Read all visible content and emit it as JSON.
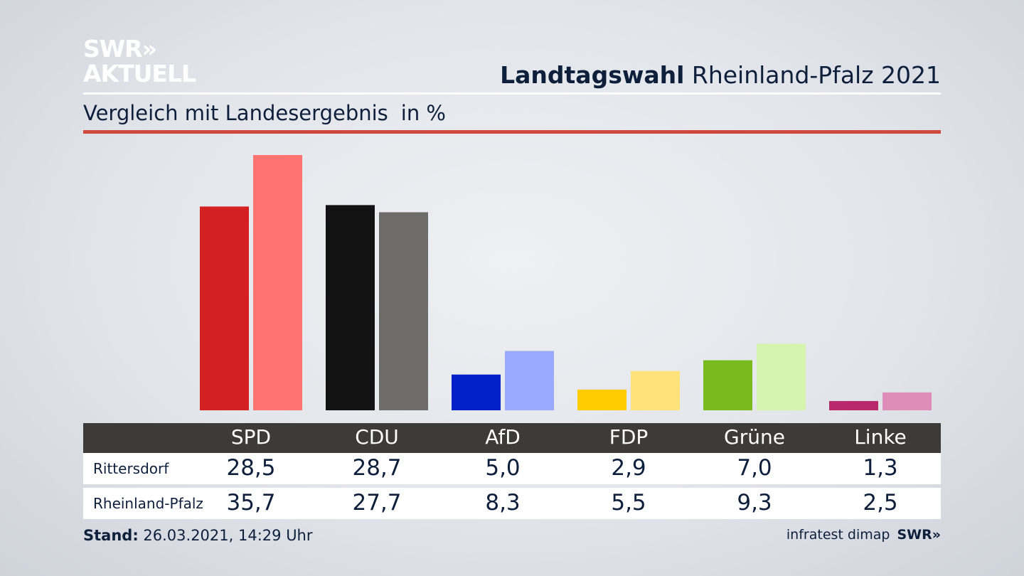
{
  "logo": {
    "line1": "SWR»",
    "line2": "AKTUELL"
  },
  "header": {
    "title_bold": "Landtagswahl",
    "title_rest": "Rheinland-Pfalz 2021"
  },
  "subtitle": {
    "text": "Vergleich mit Landesergebnis",
    "unit": "in %"
  },
  "table": {
    "row1_label": "Rittersdorf",
    "row2_label": "Rheinland-Pfalz"
  },
  "footer": {
    "stand_label": "Stand:",
    "stand_value": "26.03.2021, 14:29 Uhr",
    "source": "infratest dimap",
    "brand": "SWR»"
  },
  "chart_data": {
    "type": "bar",
    "categories": [
      "SPD",
      "CDU",
      "AfD",
      "FDP",
      "Grüne",
      "Linke"
    ],
    "series": [
      {
        "name": "Rittersdorf",
        "values": [
          28.5,
          28.7,
          5.0,
          2.9,
          7.0,
          1.3
        ],
        "labels": [
          "28,5",
          "28,7",
          "5,0",
          "2,9",
          "7,0",
          "1,3"
        ]
      },
      {
        "name": "Rheinland-Pfalz",
        "values": [
          35.7,
          27.7,
          8.3,
          5.5,
          9.3,
          2.5
        ],
        "labels": [
          "35,7",
          "27,7",
          "8,3",
          "5,5",
          "9,3",
          "2,5"
        ]
      }
    ],
    "colors": {
      "Rittersdorf": [
        "#d42020",
        "#121212",
        "#0020c8",
        "#ffcc00",
        "#79bb1f",
        "#b8286a"
      ],
      "Rheinland-Pfalz": [
        "#ff7470",
        "#6e6c6b",
        "#9aa8ff",
        "#ffe27a",
        "#d5f5ae",
        "#e08cb8"
      ]
    },
    "ylim": [
      0,
      36
    ],
    "grid": false,
    "legend": "table-below"
  }
}
